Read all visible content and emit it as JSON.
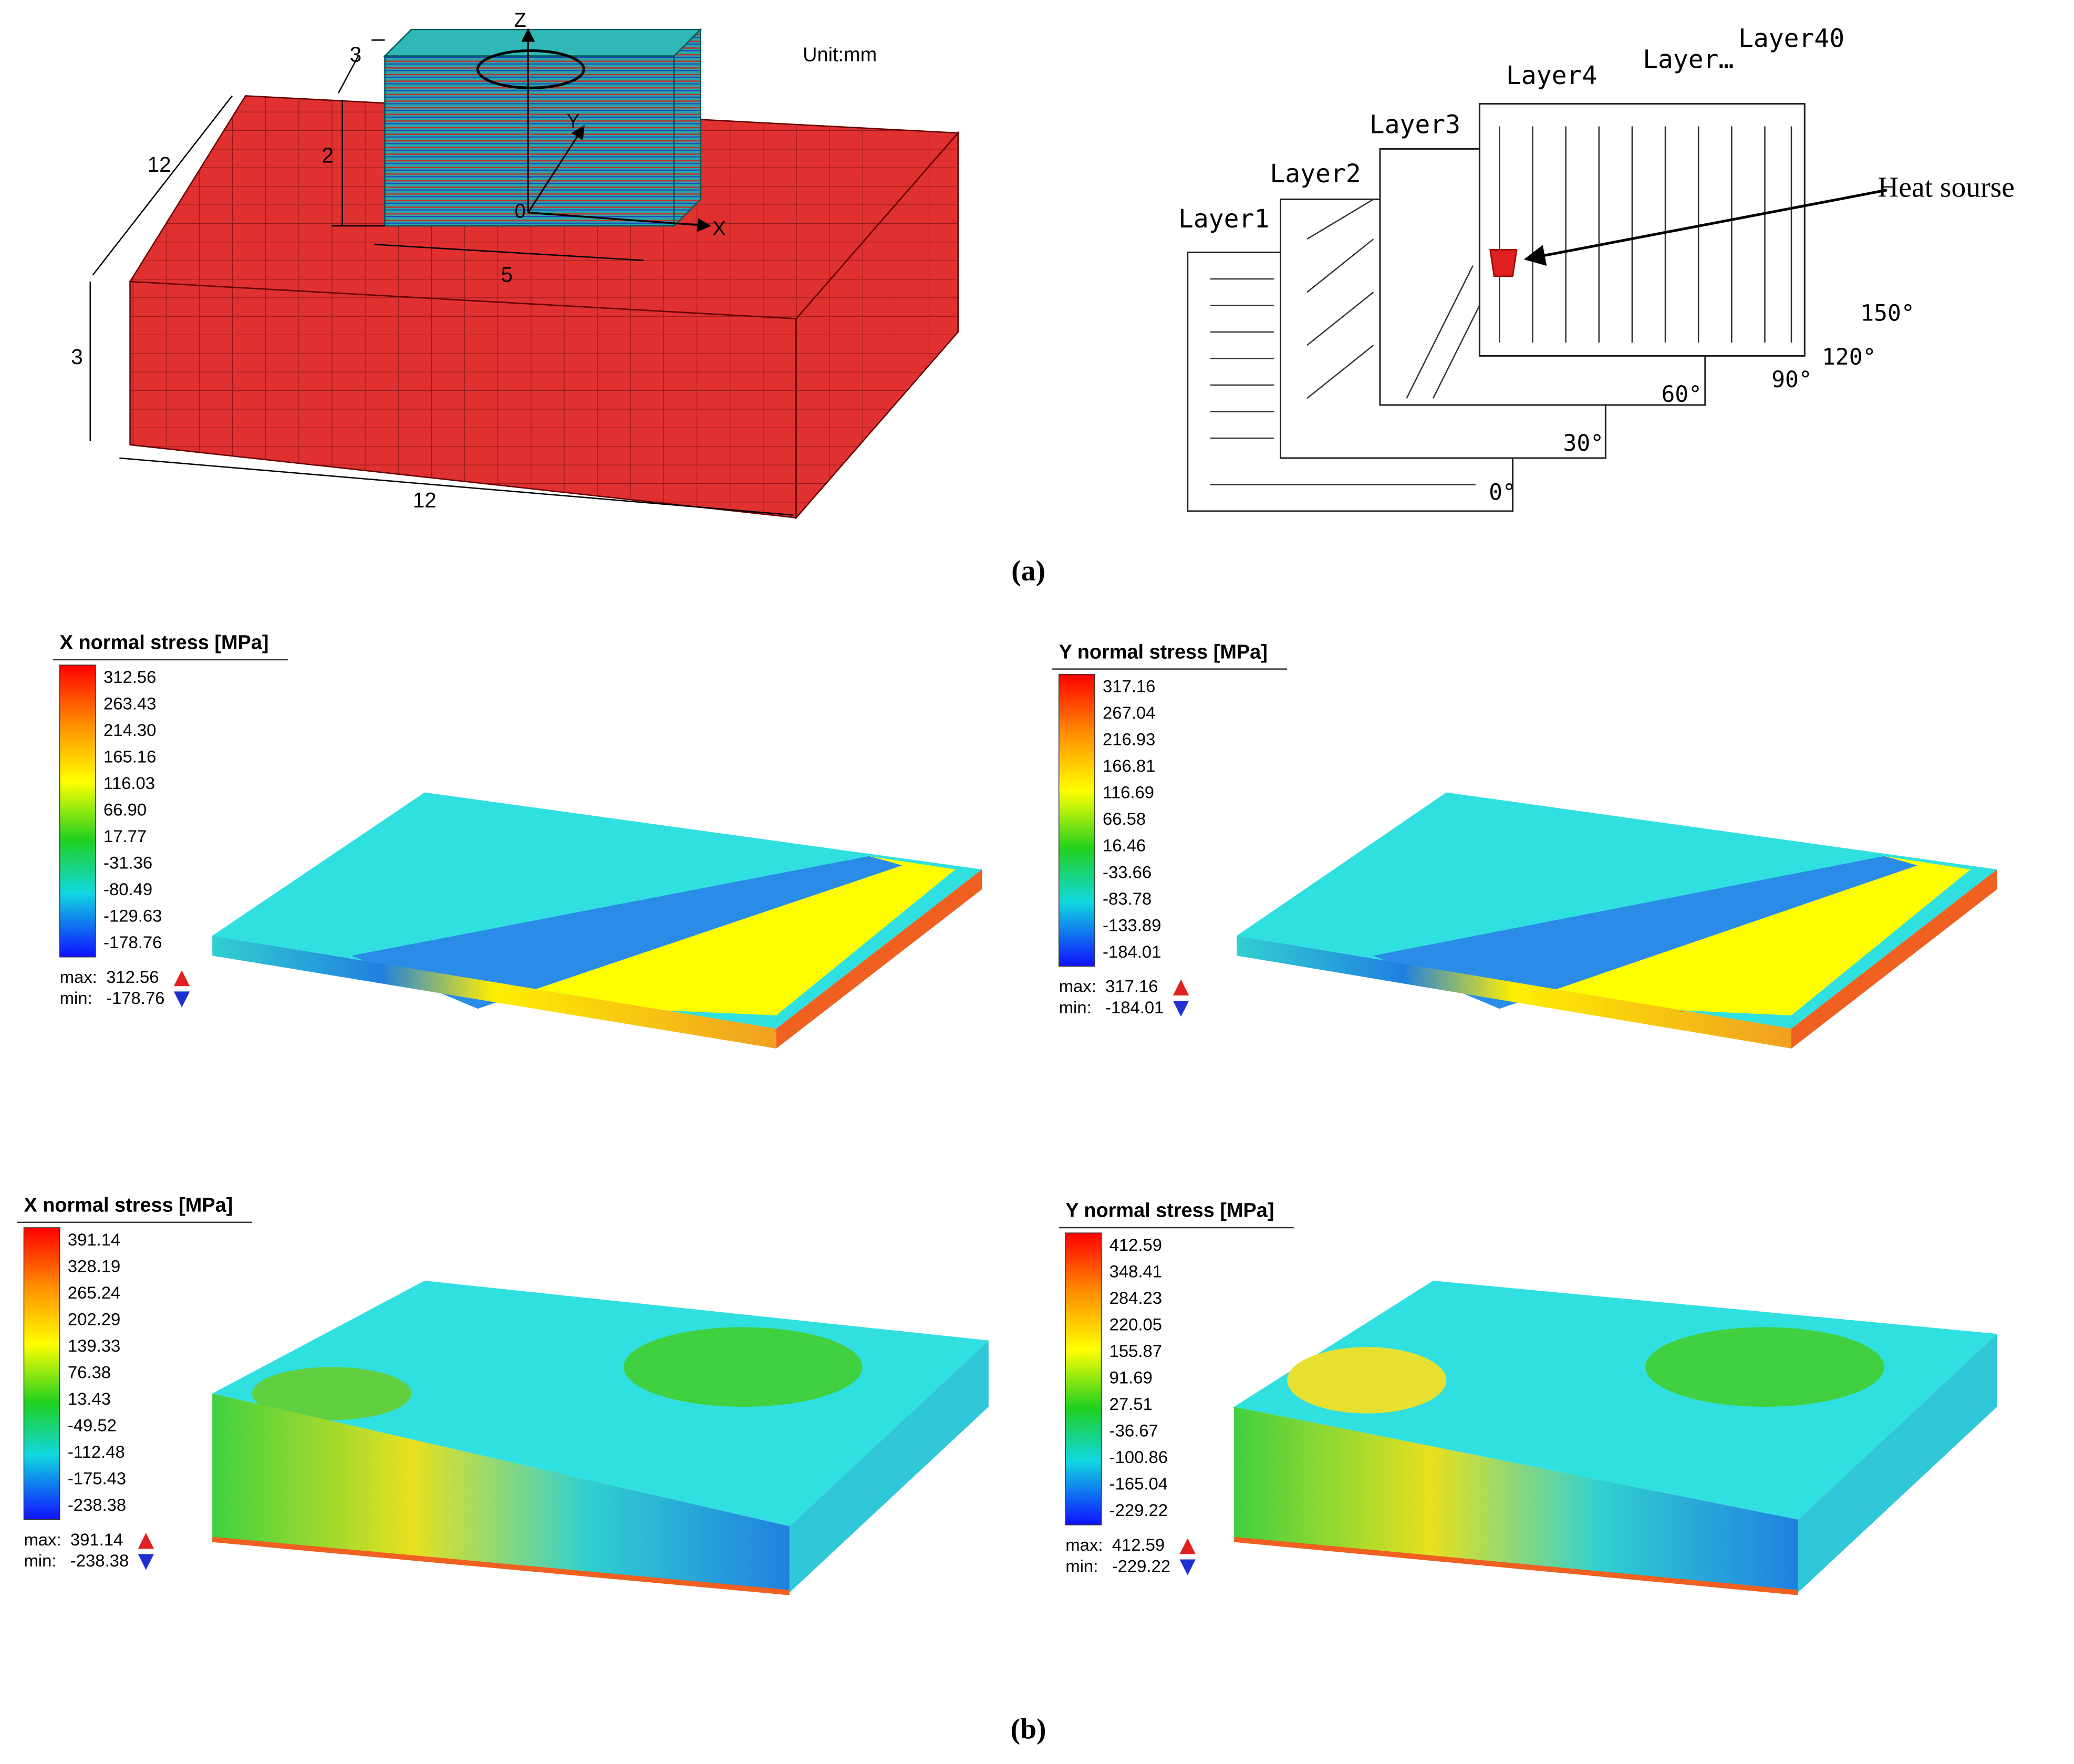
{
  "panel_a": {
    "mesh": {
      "unit": "Unit:mm",
      "dims": [
        "3",
        "2",
        "12",
        "3",
        "12",
        "5"
      ],
      "axes": [
        "Z",
        "Y",
        "X",
        "0"
      ]
    },
    "scan": {
      "layers": [
        "Layer1",
        "Layer2",
        "Layer3",
        "Layer4",
        "Layer…",
        "Layer40"
      ],
      "heat_source": "Heat sourse",
      "angles": [
        "0°",
        "30°",
        "60°",
        "90°",
        "120°",
        "150°"
      ]
    },
    "caption": "(a)"
  },
  "panel_b": {
    "plots": [
      {
        "title": "X normal stress [MPa]",
        "legend": [
          "312.56",
          "263.43",
          "214.30",
          "165.16",
          "116.03",
          "66.90",
          "17.77",
          "-31.36",
          "-80.49",
          "-129.63",
          "-178.76"
        ],
        "max_label": "max:",
        "max": "312.56",
        "min_label": "min:",
        "min": "-178.76"
      },
      {
        "title": "Y normal stress [MPa]",
        "legend": [
          "317.16",
          "267.04",
          "216.93",
          "166.81",
          "116.69",
          "66.58",
          "16.46",
          "-33.66",
          "-83.78",
          "-133.89",
          "-184.01"
        ],
        "max_label": "max:",
        "max": "317.16",
        "min_label": "min:",
        "min": "-184.01"
      },
      {
        "title": "X normal stress [MPa]",
        "legend": [
          "391.14",
          "328.19",
          "265.24",
          "202.29",
          "139.33",
          "76.38",
          "13.43",
          "-49.52",
          "-112.48",
          "-175.43",
          "-238.38"
        ],
        "max_label": "max:",
        "max": "391.14",
        "min_label": "min:",
        "min": "-238.38"
      },
      {
        "title": "Y normal stress [MPa]",
        "legend": [
          "412.59",
          "348.41",
          "284.23",
          "220.05",
          "155.87",
          "91.69",
          "27.51",
          "-36.67",
          "-100.86",
          "-165.04",
          "-229.22"
        ],
        "max_label": "max:",
        "max": "412.59",
        "min_label": "min:",
        "min": "-229.22"
      }
    ],
    "caption": "(b)"
  }
}
